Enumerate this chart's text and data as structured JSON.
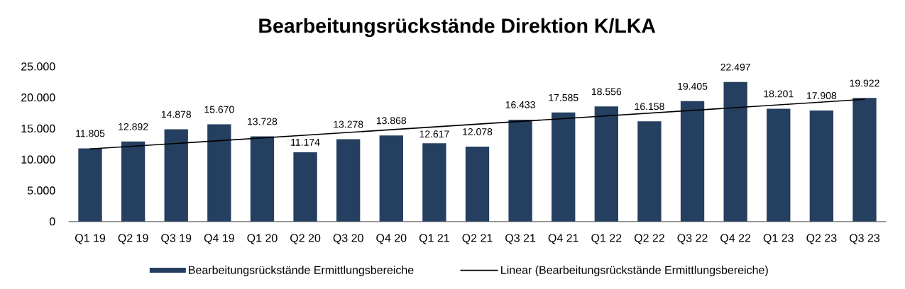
{
  "chart_data": {
    "type": "bar",
    "title": "Bearbeitungsrückstände Direktion K/LKA",
    "categories": [
      "Q1 19",
      "Q2 19",
      "Q3 19",
      "Q4 19",
      "Q1 20",
      "Q2 20",
      "Q3 20",
      "Q4 20",
      "Q1 21",
      "Q2 21",
      "Q3 21",
      "Q4 21",
      "Q1 22",
      "Q2 22",
      "Q3 22",
      "Q4 22",
      "Q1 23",
      "Q2 23",
      "Q3 23"
    ],
    "series": [
      {
        "name": "Bearbeitungsrückstände Ermittlungsbereiche",
        "color": "#253f60",
        "values": [
          11805,
          12892,
          14878,
          15670,
          13728,
          11174,
          13278,
          13868,
          12617,
          12078,
          16433,
          17585,
          18556,
          16158,
          19405,
          22497,
          18201,
          17908,
          19922
        ],
        "value_labels": [
          "11.805",
          "12.892",
          "14.878",
          "15.670",
          "13.728",
          "11.174",
          "13.278",
          "13.868",
          "12.617",
          "12.078",
          "16.433",
          "17.585",
          "18.556",
          "16.158",
          "19.405",
          "22.497",
          "18.201",
          "17.908",
          "19.922"
        ]
      },
      {
        "type": "line",
        "name": "Linear (Bearbeitungsrückstände Ermittlungsbereiche)",
        "color": "#000000",
        "x": [
          "Q1 19",
          "Q3 23"
        ],
        "values": [
          11700,
          19700
        ]
      }
    ],
    "ylim": [
      0,
      25000
    ],
    "yticks": [
      0,
      {
        "value": 5000,
        "label": "5.000"
      },
      {
        "value": 10000,
        "label": "10.000"
      },
      {
        "value": 15000,
        "label": "15.000"
      },
      {
        "value": 20000,
        "label": "20.000"
      },
      {
        "value": 25000,
        "label": "25.000"
      }
    ],
    "legend": "bottom"
  }
}
